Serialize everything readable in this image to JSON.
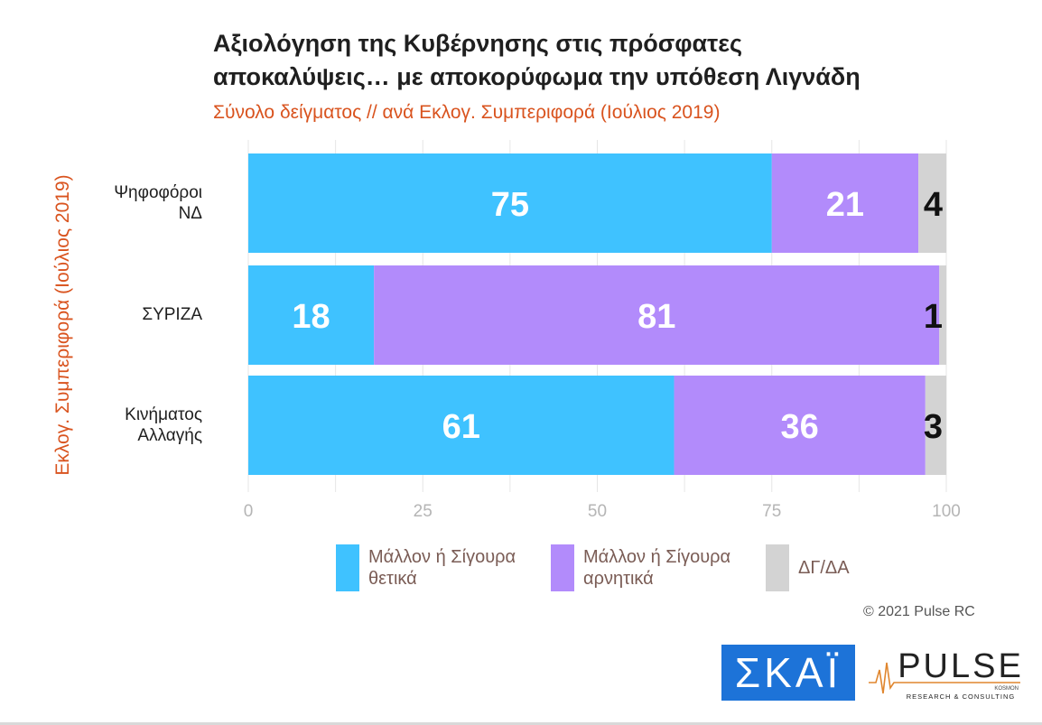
{
  "title_line1": "Αξιολόγηση της Κυβέρνησης στις πρόσφατες",
  "title_line2": "αποκαλύψεις… με αποκορύφωμα την υπόθεση Λιγνάδη",
  "subtitle": "Σύνολο δείγματος // ανά Εκλογ. Συμπεριφορά (Ιούλιος 2019)",
  "copyright": "© 2021 Pulse RC",
  "logos": {
    "skai": "ΣΚΑΪ",
    "pulse": "PULSE",
    "pulse_sub": "RESEARCH & CONSULTING",
    "pulse_tag": "KOSMON"
  },
  "colors": {
    "positive": "#3fc2ff",
    "negative": "#b28bfb",
    "dk": "#d3d3d3",
    "accent": "#d9531e"
  },
  "chart_data": {
    "type": "bar",
    "orientation": "horizontal",
    "stacked": true,
    "ylabel": "Εκλογ. Συμπεριφορά (Ιούλιος 2019)",
    "xlim": [
      0,
      100
    ],
    "xticks": [
      "0",
      "25",
      "50",
      "75",
      "100"
    ],
    "categories": [
      [
        "Ψηφοφόροι",
        "ΝΔ"
      ],
      [
        "ΣΥΡΙΖΑ"
      ],
      [
        "Κινήματος",
        "Αλλαγής"
      ]
    ],
    "series": [
      {
        "name": "Μάλλον ή Σίγουρα θετικά",
        "legend_lines": [
          "Μάλλον ή Σίγουρα",
          "θετικά"
        ],
        "values": [
          75,
          18,
          61
        ]
      },
      {
        "name": "Μάλλον ή Σίγουρα αρνητικά",
        "legend_lines": [
          "Μάλλον ή Σίγουρα",
          "αρνητικά"
        ],
        "values": [
          21,
          81,
          36
        ]
      },
      {
        "name": "ΔΓ/ΔΑ",
        "legend_lines": [
          "ΔΓ/ΔΑ"
        ],
        "values": [
          4,
          1,
          3
        ]
      }
    ],
    "grid": true,
    "legend_position": "bottom"
  }
}
